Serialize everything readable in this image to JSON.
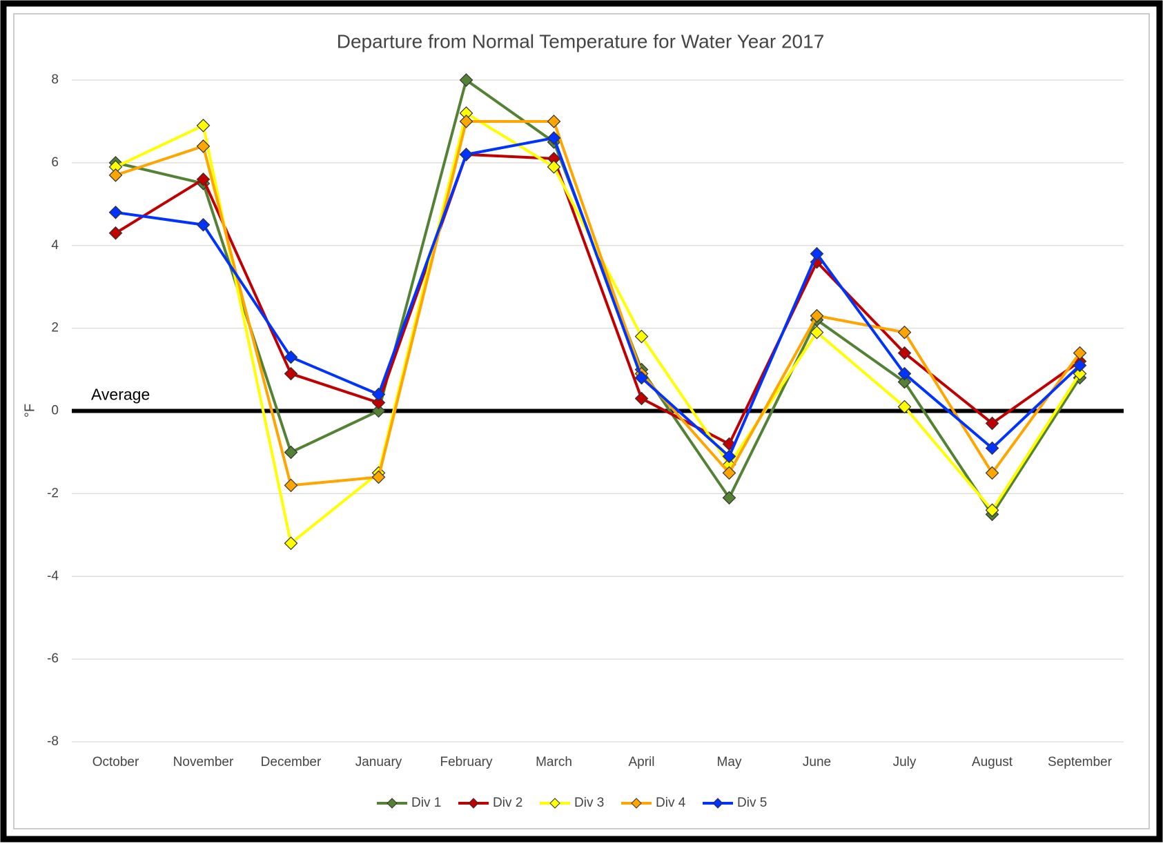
{
  "chart_data": {
    "type": "line",
    "title": "Departure from Normal Temperature for Water Year 2017",
    "y_label": "°F",
    "categories": [
      "October",
      "November",
      "December",
      "January",
      "February",
      "March",
      "April",
      "May",
      "June",
      "July",
      "August",
      "September"
    ],
    "series": [
      {
        "name": "Div 1",
        "color": "#548235",
        "values": [
          6.0,
          5.5,
          -1.0,
          0.0,
          8.0,
          6.5,
          1.0,
          -2.1,
          2.2,
          0.7,
          -2.5,
          0.8
        ]
      },
      {
        "name": "Div 2",
        "color": "#c00000",
        "values": [
          4.3,
          5.6,
          0.9,
          0.2,
          6.2,
          6.1,
          0.3,
          -0.8,
          3.6,
          1.4,
          -0.3,
          1.2
        ]
      },
      {
        "name": "Div 3",
        "color": "#ffff00",
        "values": [
          5.9,
          6.9,
          -3.2,
          -1.5,
          7.2,
          5.9,
          1.8,
          -1.3,
          1.9,
          0.1,
          -2.4,
          0.9
        ]
      },
      {
        "name": "Div 4",
        "color": "#ffa500",
        "values": [
          5.7,
          6.4,
          -1.8,
          -1.6,
          7.0,
          7.0,
          0.9,
          -1.5,
          2.3,
          1.9,
          -1.5,
          1.4
        ]
      },
      {
        "name": "Div 5",
        "color": "#0033ff",
        "values": [
          4.8,
          4.5,
          1.3,
          0.4,
          6.2,
          6.6,
          0.8,
          -1.1,
          3.8,
          0.9,
          -0.9,
          1.1
        ]
      }
    ],
    "reference_line": {
      "value": 0,
      "label": "Average"
    },
    "ylim": [
      -8,
      8
    ],
    "yticks": [
      -8,
      -6,
      -4,
      -2,
      0,
      2,
      4,
      6,
      8
    ],
    "grid": true,
    "legend": "bottom"
  }
}
